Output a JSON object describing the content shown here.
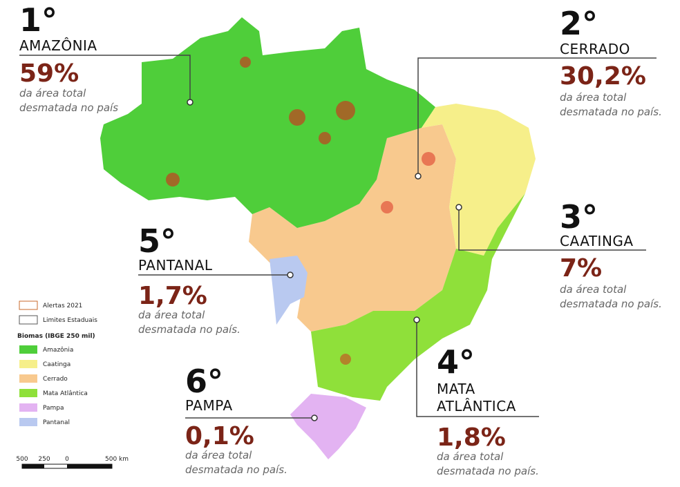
{
  "rankings": [
    {
      "rank": "1°",
      "biome_lines": [
        "AMAZÔNIA"
      ],
      "share": "59%",
      "caption": [
        "da área total",
        "desmatada no país"
      ]
    },
    {
      "rank": "2°",
      "biome_lines": [
        "CERRADO"
      ],
      "share": "30,2%",
      "caption": [
        "da área total",
        "desmatada no país."
      ]
    },
    {
      "rank": "3°",
      "biome_lines": [
        "CAATINGA"
      ],
      "share": "7%",
      "caption": [
        "da área total",
        "desmatada no país."
      ]
    },
    {
      "rank": "4°",
      "biome_lines": [
        "MATA",
        "ATLÂNTICA"
      ],
      "share": "1,8%",
      "caption": [
        "da área total",
        "desmatada no país."
      ]
    },
    {
      "rank": "5°",
      "biome_lines": [
        "PANTANAL"
      ],
      "share": "1,7%",
      "caption": [
        "da área total",
        "desmatada no país."
      ]
    },
    {
      "rank": "6°",
      "biome_lines": [
        "PAMPA"
      ],
      "share": "0,1%",
      "caption": [
        "da área total",
        "desmatada no país."
      ]
    }
  ],
  "legend": {
    "alerts": "Alertas 2021",
    "limits": "Limites Estaduais",
    "title": "Biomas (IBGE 250 mil)",
    "biomes": [
      "Amazônia",
      "Caatinga",
      "Cerrado",
      "Mata Atlântica",
      "Pampa",
      "Pantanal"
    ]
  },
  "scale": {
    "labels": [
      "500",
      "250",
      "0",
      "500 km"
    ]
  }
}
